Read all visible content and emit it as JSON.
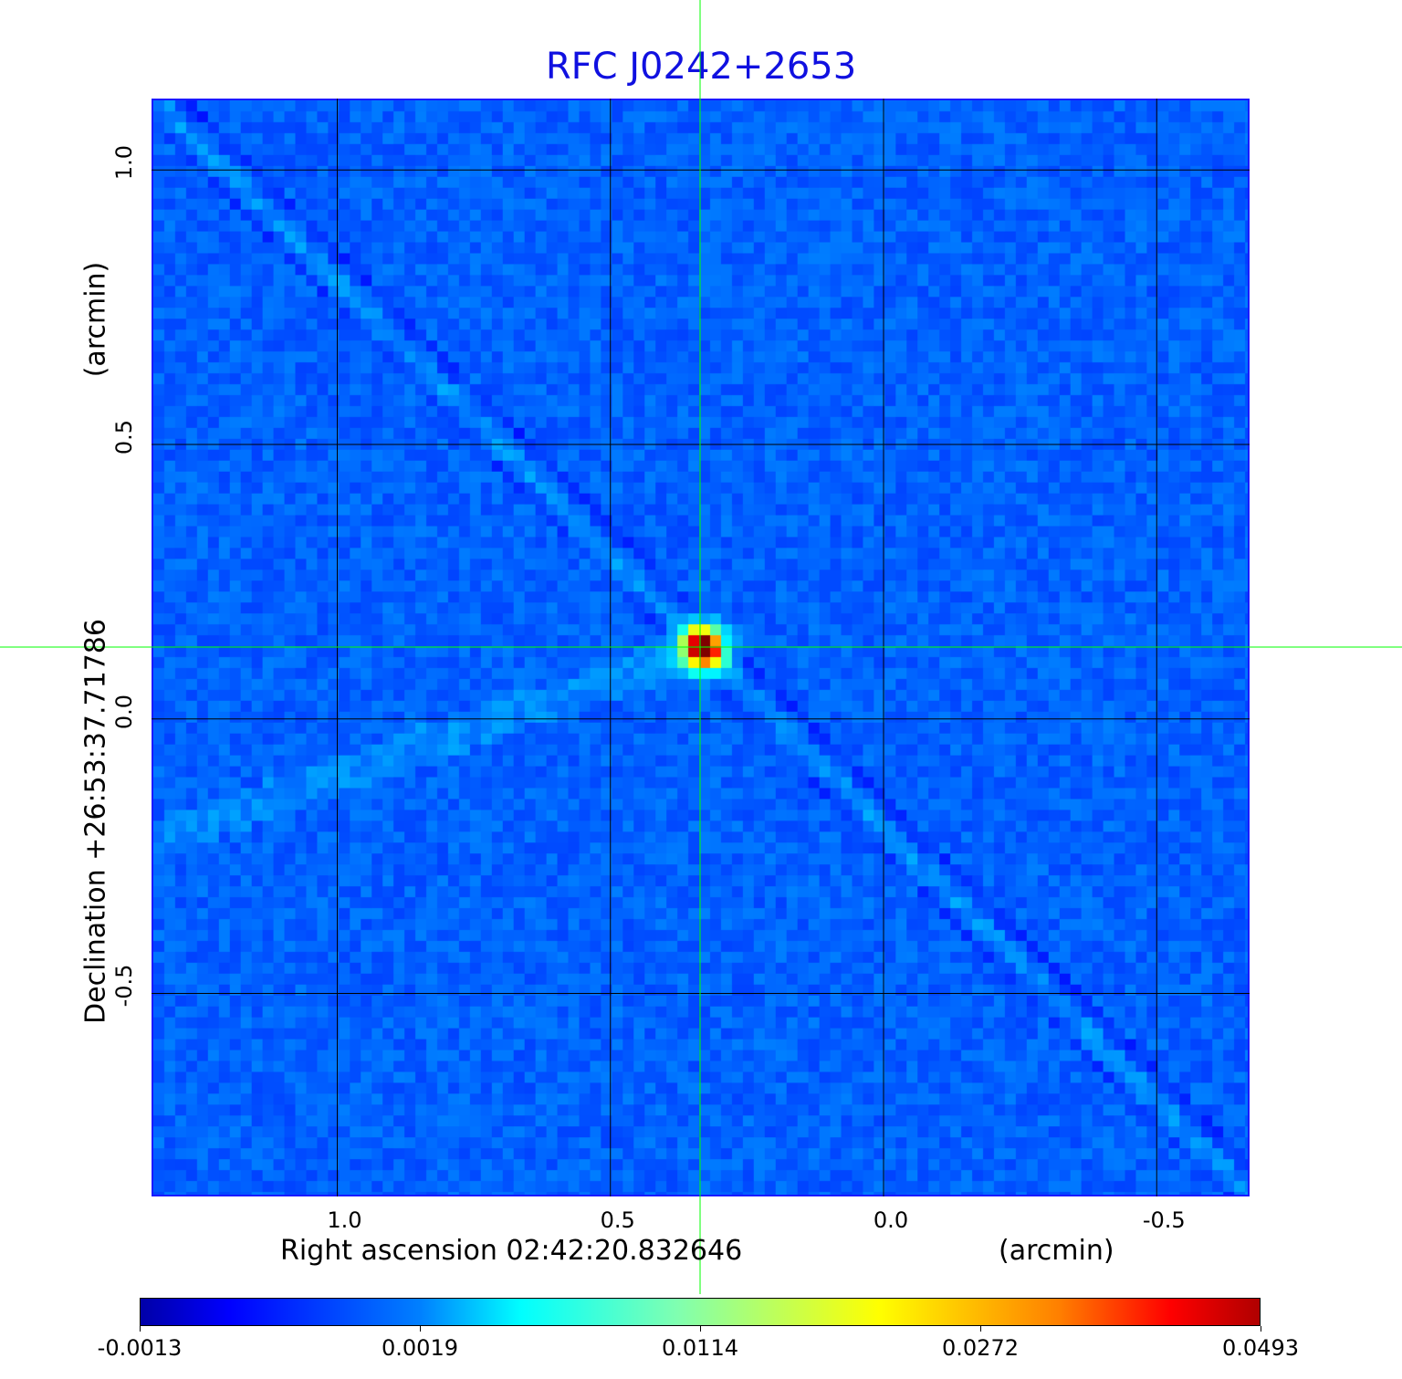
{
  "chart_data": {
    "type": "heatmap",
    "title": "RFC J0242+2653",
    "xlabel": "Right ascension  02:42:20.832646",
    "x_unit": "(arcmin)",
    "ylabel": "Declination  +26:53:37.71786",
    "y_unit": "(arcmin)",
    "xlim": [
      1.34,
      -0.67
    ],
    "ylim": [
      -0.87,
      1.13
    ],
    "x_ticks": [
      "1.0",
      "0.5",
      "0.0",
      "-0.5"
    ],
    "x_tick_values": [
      1.0,
      0.5,
      0.0,
      -0.5
    ],
    "y_ticks": [
      "1.0",
      "0.5",
      "0.0",
      "-0.5"
    ],
    "y_tick_values": [
      1.0,
      0.5,
      0.0,
      -0.5
    ],
    "grid": true,
    "colormap": "jet",
    "colorbar_ticks": [
      "-0.0013",
      "0.0019",
      "0.0114",
      "0.0272",
      "0.0493"
    ],
    "value_range": [
      -0.0013,
      0.0493
    ],
    "peak_position": {
      "ra_arcmin": 0.33,
      "dec_arcmin": 0.13
    },
    "crosshair_color": "#00ff00",
    "title_color": "#1010e0"
  }
}
